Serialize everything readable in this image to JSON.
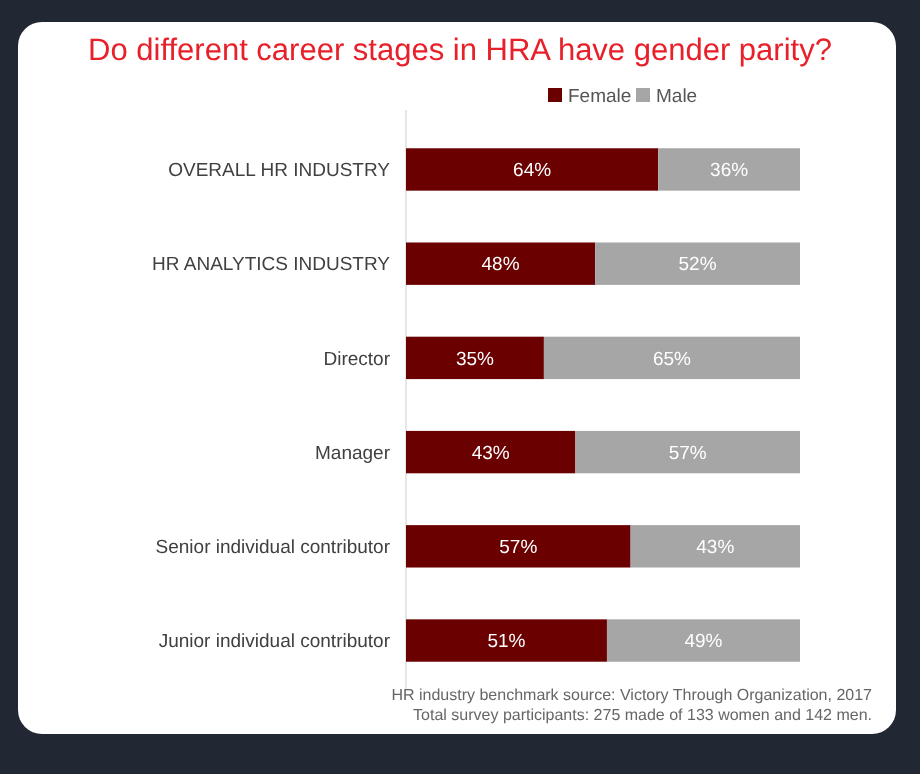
{
  "chart_data": {
    "type": "bar",
    "orientation": "horizontal",
    "stacked": true,
    "title": "Do different career stages in HRA have gender parity?",
    "categories": [
      "OVERALL HR INDUSTRY",
      "HR ANALYTICS INDUSTRY",
      "Director",
      "Manager",
      "Senior individual contributor",
      "Junior individual contributor"
    ],
    "series": [
      {
        "name": "Female",
        "color": "#6b0000",
        "values": [
          64,
          48,
          35,
          43,
          57,
          51
        ],
        "value_labels": [
          "64%",
          "48%",
          "35%",
          "43%",
          "57%",
          "51%"
        ]
      },
      {
        "name": "Male",
        "color": "#a6a6a6",
        "values": [
          36,
          52,
          65,
          57,
          43,
          49
        ],
        "value_labels": [
          "36%",
          "52%",
          "65%",
          "57%",
          "43%",
          "49%"
        ]
      }
    ],
    "xlim": [
      0,
      100
    ],
    "tick_labels": "y",
    "legend": "top",
    "annotations": [
      "HR industry benchmark source: Victory Through Organization, 2017",
      "Total survey participants: 275 made of 133 women and 142 men."
    ]
  }
}
